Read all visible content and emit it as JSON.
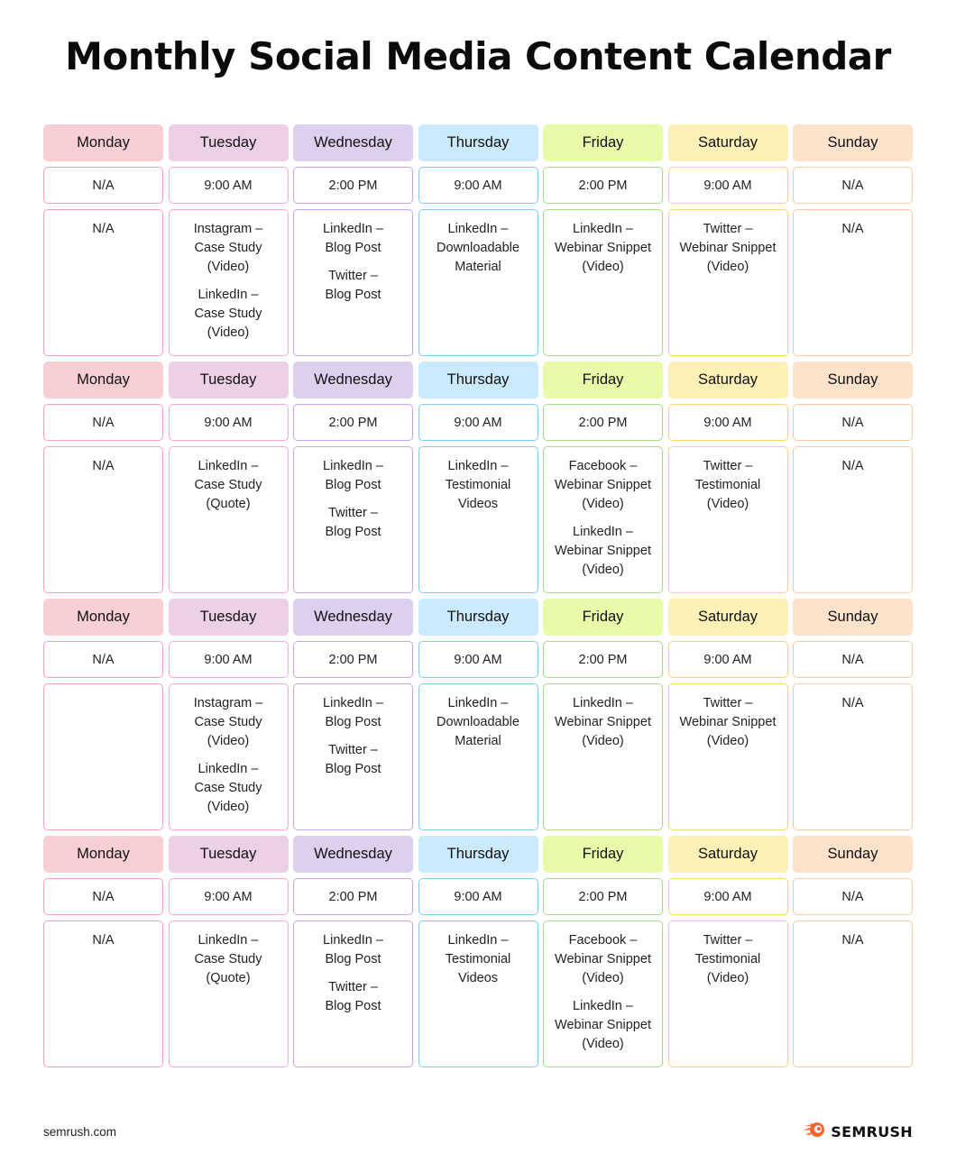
{
  "title": "Monthly Social Media Content Calendar",
  "days": [
    "Monday",
    "Tuesday",
    "Wednesday",
    "Thursday",
    "Friday",
    "Saturday",
    "Sunday"
  ],
  "weeks": [
    {
      "times": [
        "N/A",
        "9:00 AM",
        "2:00 PM",
        "9:00 AM",
        "2:00 PM",
        "9:00 AM",
        "N/A"
      ],
      "content": [
        [
          "N/A"
        ],
        [
          "Instagram –\nCase Study\n(Video)",
          "LinkedIn –\nCase Study\n(Video)"
        ],
        [
          "LinkedIn –\nBlog Post",
          "Twitter –\nBlog Post"
        ],
        [
          "LinkedIn –\nDownloadable\nMaterial"
        ],
        [
          "LinkedIn –\nWebinar Snippet\n(Video)"
        ],
        [
          "Twitter –\nWebinar Snippet\n(Video)"
        ],
        [
          "N/A"
        ]
      ]
    },
    {
      "times": [
        "N/A",
        "9:00 AM",
        "2:00 PM",
        "9:00 AM",
        "2:00 PM",
        "9:00 AM",
        "N/A"
      ],
      "content": [
        [
          "N/A"
        ],
        [
          "LinkedIn –\nCase Study\n(Quote)"
        ],
        [
          "LinkedIn –\nBlog Post",
          "Twitter –\nBlog Post"
        ],
        [
          "LinkedIn –\nTestimonial\nVideos"
        ],
        [
          "Facebook –\nWebinar Snippet\n(Video)",
          "LinkedIn –\nWebinar Snippet\n(Video)"
        ],
        [
          "Twitter –\nTestimonial\n(Video)"
        ],
        [
          "N/A"
        ]
      ]
    },
    {
      "times": [
        "N/A",
        "9:00 AM",
        "2:00 PM",
        "9:00 AM",
        "2:00 PM",
        "9:00 AM",
        "N/A"
      ],
      "content": [
        [],
        [
          "Instagram –\nCase Study\n(Video)",
          "LinkedIn –\nCase Study\n(Video)"
        ],
        [
          "LinkedIn –\nBlog Post",
          "Twitter –\nBlog Post"
        ],
        [
          "LinkedIn –\nDownloadable\nMaterial"
        ],
        [
          "LinkedIn –\nWebinar Snippet\n(Video)"
        ],
        [
          "Twitter –\nWebinar Snippet\n(Video)"
        ],
        [
          "N/A"
        ]
      ]
    },
    {
      "times": [
        "N/A",
        "9:00 AM",
        "2:00 PM",
        "9:00 AM",
        "2:00 PM",
        "9:00 AM",
        "N/A"
      ],
      "content": [
        [
          "N/A"
        ],
        [
          "LinkedIn –\nCase Study\n(Quote)"
        ],
        [
          "LinkedIn –\nBlog Post",
          "Twitter –\nBlog Post"
        ],
        [
          "LinkedIn –\nTestimonial\nVideos"
        ],
        [
          "Facebook –\nWebinar Snippet\n(Video)",
          "LinkedIn –\nWebinar Snippet\n(Video)"
        ],
        [
          "Twitter –\nTestimonial\n(Video)"
        ],
        [
          "N/A"
        ]
      ]
    }
  ],
  "footer": {
    "site": "semrush.com",
    "brand": "SEMRUSH",
    "brand_icon": "semrush-flame-icon",
    "brand_color": "#ff642d"
  }
}
